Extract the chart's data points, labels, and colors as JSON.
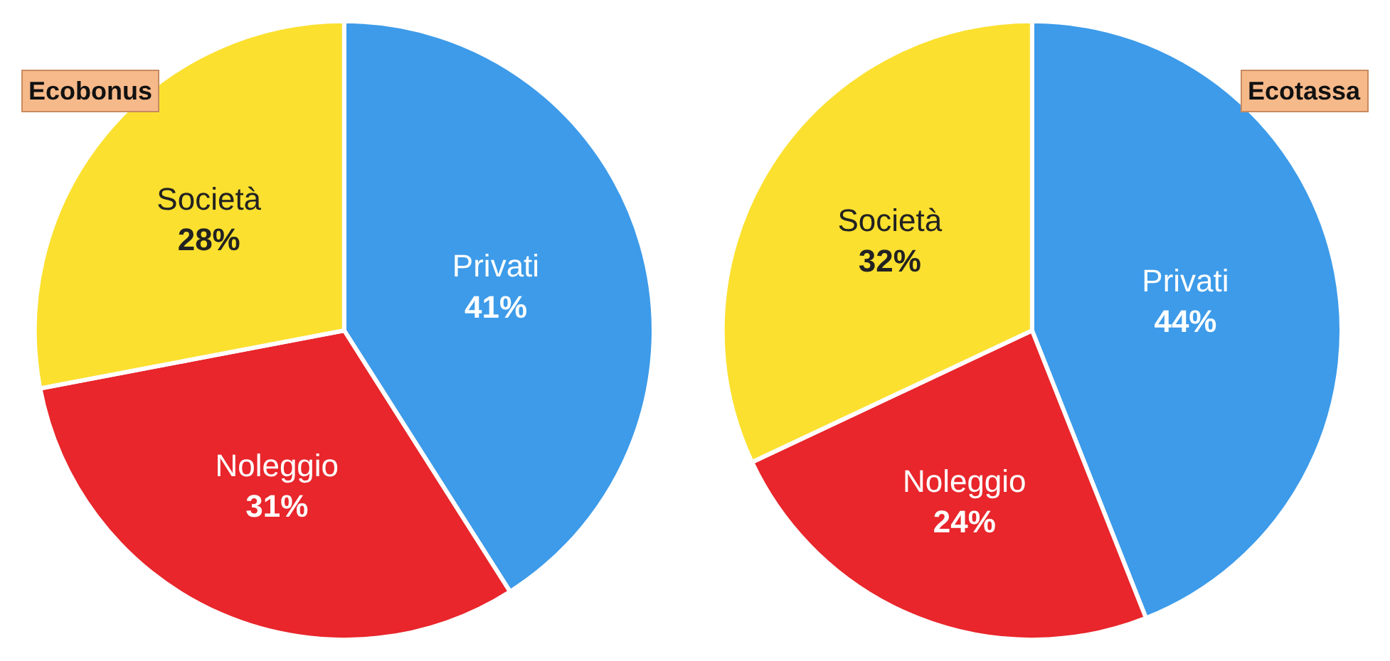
{
  "chart_data": [
    {
      "type": "pie",
      "title": "Ecobonus",
      "categories": [
        "Privati",
        "Noleggio",
        "Società"
      ],
      "values": [
        41,
        31,
        28
      ],
      "value_labels": [
        "41%",
        "31%",
        "28%"
      ],
      "colors": [
        "#3d9be9",
        "#e8262b",
        "#fbe02f"
      ],
      "legend": false
    },
    {
      "type": "pie",
      "title": "Ecotassa",
      "categories": [
        "Privati",
        "Noleggio",
        "Società"
      ],
      "values": [
        44,
        24,
        32
      ],
      "value_labels": [
        "44%",
        "24%",
        "32%"
      ],
      "colors": [
        "#3d9be9",
        "#e8262b",
        "#fbe02f"
      ],
      "legend": false
    }
  ]
}
